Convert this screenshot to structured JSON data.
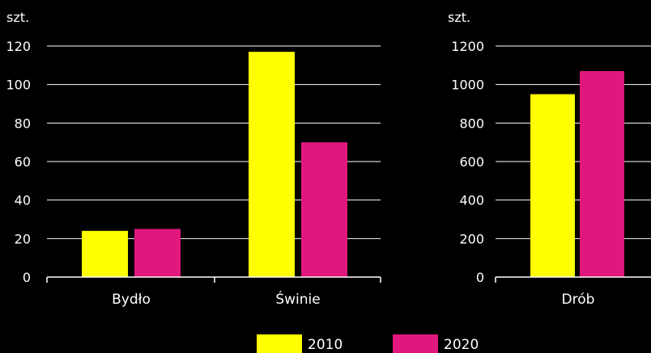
{
  "background": "#000000",
  "chart_data": [
    {
      "type": "bar",
      "unit": "szt.",
      "categories": [
        "Bydło",
        "Świnie"
      ],
      "ylim": [
        0,
        120
      ],
      "yticks": [
        0,
        20,
        40,
        60,
        80,
        100,
        120
      ],
      "grid": true,
      "series": [
        {
          "name": "2010",
          "color": "#ffff00",
          "values": [
            24,
            117
          ]
        },
        {
          "name": "2020",
          "color": "#e0177d",
          "values": [
            25,
            70
          ]
        }
      ]
    },
    {
      "type": "bar",
      "unit": "szt.",
      "categories": [
        "Drób"
      ],
      "ylim": [
        0,
        1200
      ],
      "yticks": [
        0,
        200,
        400,
        600,
        800,
        1000,
        1200
      ],
      "grid": true,
      "series": [
        {
          "name": "2010",
          "color": "#ffff00",
          "values": [
            950
          ]
        },
        {
          "name": "2020",
          "color": "#e0177d",
          "values": [
            1070
          ]
        }
      ]
    }
  ],
  "legend": {
    "position": "bottom",
    "items": [
      {
        "label": "2010",
        "color": "#ffff00"
      },
      {
        "label": "2020",
        "color": "#e0177d"
      }
    ]
  }
}
